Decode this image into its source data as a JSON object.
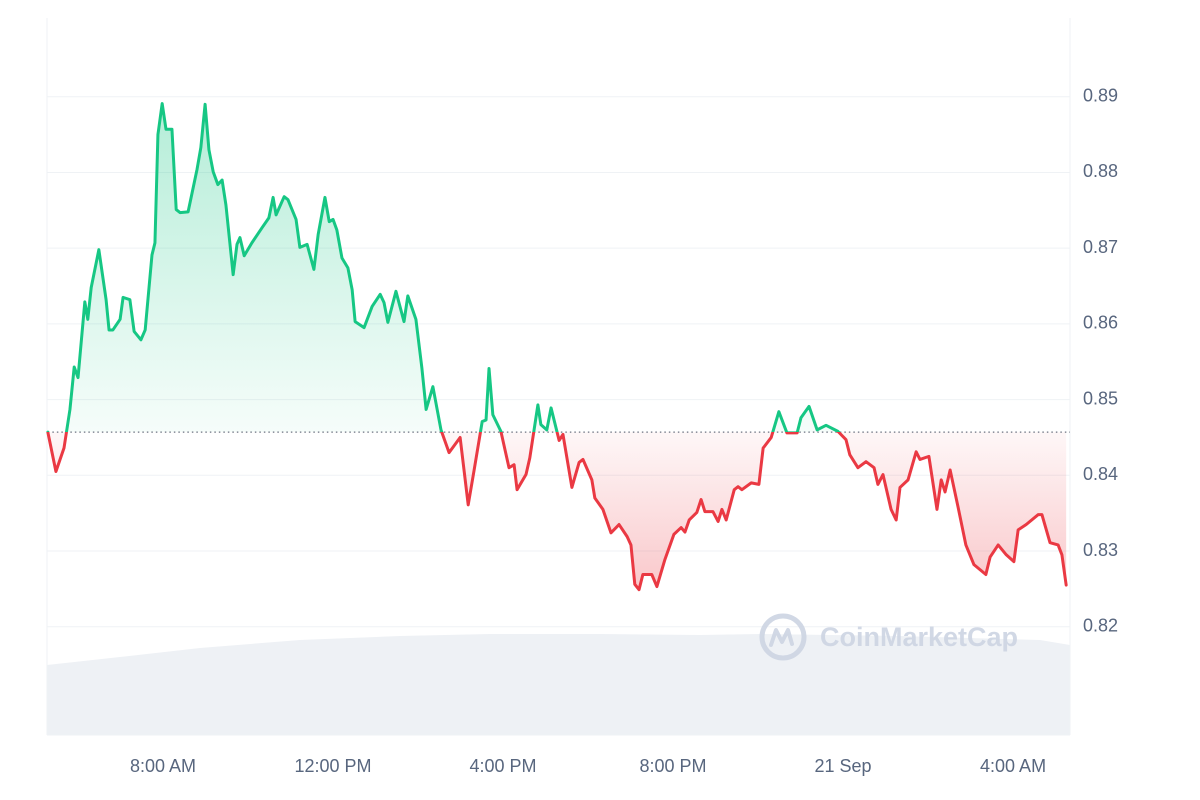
{
  "chart_data": {
    "type": "line",
    "watermark": "CoinMarketCap",
    "x": [
      5.29,
      5.48,
      5.67,
      5.81,
      5.91,
      6.0,
      6.16,
      6.23,
      6.31,
      6.49,
      6.66,
      6.73,
      6.82,
      6.99,
      7.06,
      7.22,
      7.32,
      7.48,
      7.58,
      7.74,
      7.81,
      7.88,
      7.98,
      8.07,
      8.21,
      8.31,
      8.4,
      8.59,
      8.8,
      8.89,
      8.99,
      9.08,
      9.18,
      9.29,
      9.39,
      9.48,
      9.65,
      9.74,
      9.81,
      9.91,
      10.09,
      10.33,
      10.49,
      10.59,
      10.66,
      10.85,
      10.94,
      11.13,
      11.22,
      11.39,
      11.55,
      11.65,
      11.81,
      11.91,
      12.0,
      12.09,
      12.21,
      12.35,
      12.45,
      12.52,
      12.73,
      12.92,
      13.11,
      13.2,
      13.29,
      13.48,
      13.67,
      13.76,
      13.95,
      14.09,
      14.19,
      14.35,
      14.54,
      14.73,
      14.99,
      15.18,
      15.32,
      15.51,
      15.6,
      15.67,
      15.76,
      15.95,
      16.14,
      16.26,
      16.33,
      16.54,
      16.63,
      16.82,
      16.89,
      17.03,
      17.13,
      17.32,
      17.41,
      17.62,
      17.79,
      17.88,
      18.09,
      18.16,
      18.35,
      18.54,
      18.73,
      18.92,
      19.01,
      19.1,
      19.2,
      19.29,
      19.5,
      19.62,
      19.81,
      20.02,
      20.19,
      20.28,
      20.38,
      20.56,
      20.66,
      20.75,
      20.94,
      21.06,
      21.15,
      21.25,
      21.44,
      21.53,
      21.62,
      21.84,
      22.02,
      22.12,
      22.31,
      22.49,
      22.68,
      22.92,
      23.01,
      23.2,
      23.39,
      23.6,
      23.88,
      24.07,
      24.16,
      24.35,
      24.54,
      24.73,
      24.82,
      24.94,
      25.13,
      25.25,
      25.34,
      25.53,
      25.72,
      25.81,
      26.02,
      26.21,
      26.31,
      26.4,
      26.52,
      26.71,
      26.89,
      27.08,
      27.36,
      27.46,
      27.65,
      27.84,
      28.02,
      28.12,
      28.31,
      28.59,
      28.68,
      28.87,
      29.06,
      29.15,
      29.25
    ],
    "values": [
      0.8457,
      0.8405,
      0.8436,
      0.8487,
      0.8543,
      0.8529,
      0.8629,
      0.8606,
      0.8648,
      0.8698,
      0.8632,
      0.8592,
      0.8592,
      0.8606,
      0.8635,
      0.8632,
      0.859,
      0.8579,
      0.8592,
      0.8691,
      0.8707,
      0.885,
      0.8891,
      0.8857,
      0.8857,
      0.8751,
      0.8747,
      0.8748,
      0.8804,
      0.8833,
      0.889,
      0.883,
      0.8801,
      0.8784,
      0.879,
      0.8757,
      0.8665,
      0.8705,
      0.8714,
      0.869,
      0.8707,
      0.8727,
      0.874,
      0.8767,
      0.8744,
      0.8768,
      0.8764,
      0.8738,
      0.8701,
      0.8705,
      0.8672,
      0.8718,
      0.8767,
      0.8735,
      0.8738,
      0.8724,
      0.8687,
      0.8674,
      0.8645,
      0.8603,
      0.8595,
      0.8623,
      0.8639,
      0.8628,
      0.8602,
      0.8643,
      0.8603,
      0.8637,
      0.8606,
      0.8542,
      0.8487,
      0.8517,
      0.846,
      0.843,
      0.845,
      0.8361,
      0.8407,
      0.8471,
      0.8473,
      0.8541,
      0.848,
      0.8458,
      0.841,
      0.8414,
      0.8381,
      0.8401,
      0.8423,
      0.8493,
      0.8467,
      0.846,
      0.8489,
      0.8446,
      0.8454,
      0.8384,
      0.8417,
      0.8421,
      0.8394,
      0.837,
      0.8355,
      0.8324,
      0.8335,
      0.8319,
      0.8308,
      0.8256,
      0.8249,
      0.8269,
      0.8269,
      0.8253,
      0.8289,
      0.8322,
      0.8331,
      0.8325,
      0.8341,
      0.8351,
      0.8368,
      0.8352,
      0.8352,
      0.8339,
      0.8355,
      0.8341,
      0.8381,
      0.8385,
      0.8381,
      0.839,
      0.8388,
      0.8436,
      0.845,
      0.8484,
      0.8456,
      0.8456,
      0.8476,
      0.8491,
      0.846,
      0.8466,
      0.8458,
      0.8447,
      0.8427,
      0.841,
      0.8418,
      0.841,
      0.8388,
      0.8401,
      0.8355,
      0.8341,
      0.8384,
      0.8394,
      0.8431,
      0.8421,
      0.8425,
      0.8355,
      0.8394,
      0.8378,
      0.8407,
      0.8357,
      0.8308,
      0.8282,
      0.8269,
      0.8292,
      0.8308,
      0.8295,
      0.8286,
      0.8328,
      0.8335,
      0.8348,
      0.8348,
      0.8311,
      0.8308,
      0.8295,
      0.8255
    ],
    "colors": {
      "up": "#16c784",
      "down": "#ea3943"
    },
    "xlim": [
      5.27,
      29.34
    ],
    "ylim": [
      0.8057,
      0.9004
    ],
    "yticks": [
      0.82,
      0.83,
      0.84,
      0.85,
      0.86,
      0.87,
      0.88,
      0.89
    ],
    "xticks": [
      {
        "value": 8,
        "label": "8:00 AM"
      },
      {
        "value": 12,
        "label": "12:00 PM"
      },
      {
        "value": 16,
        "label": "4:00 PM"
      },
      {
        "value": 20,
        "label": "8:00 PM"
      },
      {
        "value": 24,
        "label": "21 Sep"
      },
      {
        "value": 28,
        "label": "4:00 AM"
      }
    ],
    "grid": true
  }
}
